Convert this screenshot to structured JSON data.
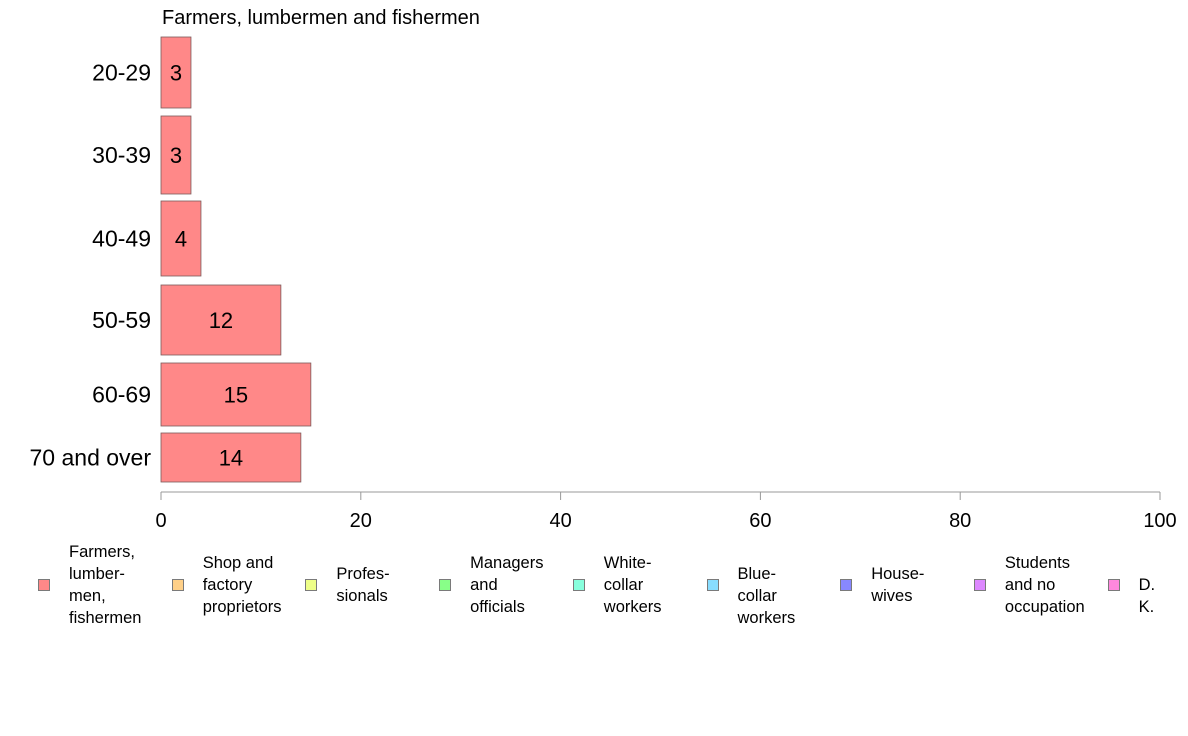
{
  "chart_data": {
    "type": "bar",
    "orientation": "horizontal",
    "title": "Farmers, lumbermen and fishermen",
    "categories": [
      "20-29",
      "30-39",
      "40-49",
      "50-59",
      "60-69",
      "70 and over"
    ],
    "values": [
      3,
      3,
      4,
      12,
      15,
      14
    ],
    "data_labels": [
      "3",
      "3",
      "4",
      "12",
      "15",
      "14"
    ],
    "xlim": [
      0,
      100
    ],
    "xticks": [
      "0",
      "20",
      "40",
      "60",
      "80",
      "100"
    ],
    "grid": false,
    "bar_color": "#ff8888",
    "bar_border_color": "#7a5a5a",
    "legend_placement": "bottom",
    "legend": [
      {
        "label": "Farmers,\nlumber-\nmen,\nfishermen",
        "color": "#ff8888"
      },
      {
        "label": "Shop and\nfactory\nproprietors",
        "color": "#ffd088"
      },
      {
        "label": "Profes-\nsionals",
        "color": "#eeff88"
      },
      {
        "label": "Managers\nand\nofficials",
        "color": "#88ff88"
      },
      {
        "label": "White-\ncollar\nworkers",
        "color": "#88ffdd"
      },
      {
        "label": "Blue-collar\nworkers",
        "color": "#88ddff"
      },
      {
        "label": "House-\nwives",
        "color": "#8888ff"
      },
      {
        "label": "Students\nand no\noccupation",
        "color": "#dd88ff"
      },
      {
        "label": "D. K.",
        "color": "#ff88dd"
      }
    ]
  }
}
